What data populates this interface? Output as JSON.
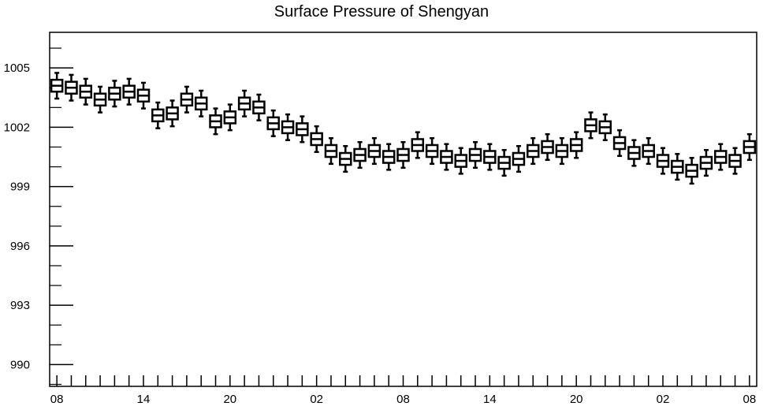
{
  "chart_data": {
    "type": "boxplot",
    "title": "Surface Pressure of Shengyan",
    "xlabel": "",
    "ylabel": "",
    "ylim": [
      988.9,
      1006.8
    ],
    "y_ticks": [
      990,
      993,
      996,
      999,
      1002,
      1005
    ],
    "x_tick_labels": [
      "08",
      "14",
      "20",
      "02",
      "08",
      "14",
      "20",
      "02",
      "08"
    ],
    "x_tick_label_every": 6,
    "grid": false,
    "series": [
      {
        "medians": [
          1004.1,
          1004.0,
          1003.8,
          1003.4,
          1003.7,
          1003.8,
          1003.6,
          1002.6,
          1002.7,
          1003.4,
          1003.2,
          1002.3,
          1002.5,
          1003.2,
          1003.0,
          1002.2,
          1002.0,
          1001.9,
          1001.4,
          1000.8,
          1000.4,
          1000.6,
          1000.8,
          1000.5,
          1000.6,
          1001.1,
          1000.8,
          1000.5,
          1000.3,
          1000.6,
          1000.5,
          1000.2,
          1000.4,
          1000.8,
          1001.0,
          1000.8,
          1001.1,
          1002.1,
          1002.0,
          1001.2,
          1000.7,
          1000.8,
          1000.3,
          1000.0,
          999.8,
          1000.2,
          1000.5,
          1000.3,
          1001.0
        ],
        "spread": 0.65
      }
    ]
  }
}
